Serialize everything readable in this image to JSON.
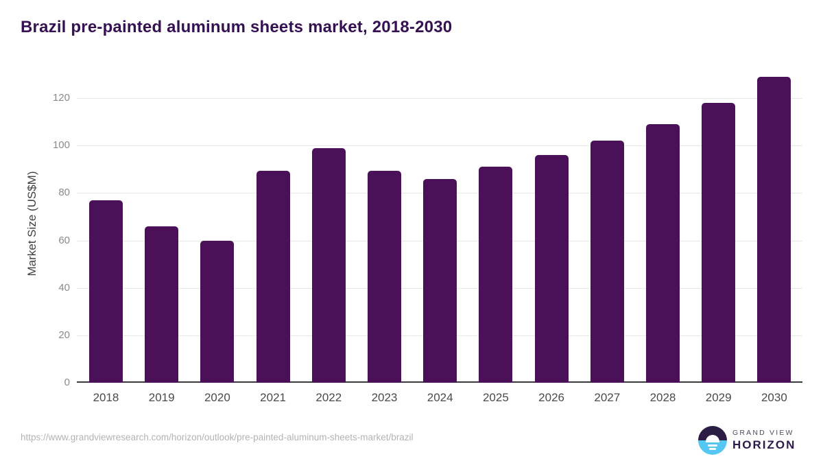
{
  "title": "Brazil pre-painted aluminum sheets market, 2018-2030",
  "chart_data": {
    "type": "bar",
    "title": "Brazil pre-painted aluminum sheets market, 2018-2030",
    "categories": [
      "2018",
      "2019",
      "2020",
      "2021",
      "2022",
      "2023",
      "2024",
      "2025",
      "2026",
      "2027",
      "2028",
      "2029",
      "2030"
    ],
    "values": [
      77,
      66,
      60,
      89.5,
      99,
      89.5,
      86,
      91,
      96,
      102,
      109,
      118,
      129
    ],
    "xlabel": "",
    "ylabel": "Market Size (US$M)",
    "ylim": [
      0,
      130
    ],
    "yticks": [
      0,
      20,
      40,
      60,
      80,
      100,
      120
    ],
    "grid": true,
    "legend": "none",
    "bar_color": "#4a1158",
    "gridline_color": "#e8e8e8",
    "axis_line_color": "#3a3a3a",
    "tick_label_color": "#8a8a8a",
    "x_label_color": "#4a4a4a"
  },
  "footer": {
    "source_url": "https://www.grandviewresearch.com/horizon/outlook/pre-painted-aluminum-sheets-market/brazil",
    "logo": {
      "line1": "GRAND VIEW",
      "line2": "HORIZON"
    }
  },
  "colors": {
    "title": "#351053",
    "background": "#ffffff",
    "logo_top_half": "#2b1d44",
    "logo_bottom_half": "#56c6f2"
  }
}
